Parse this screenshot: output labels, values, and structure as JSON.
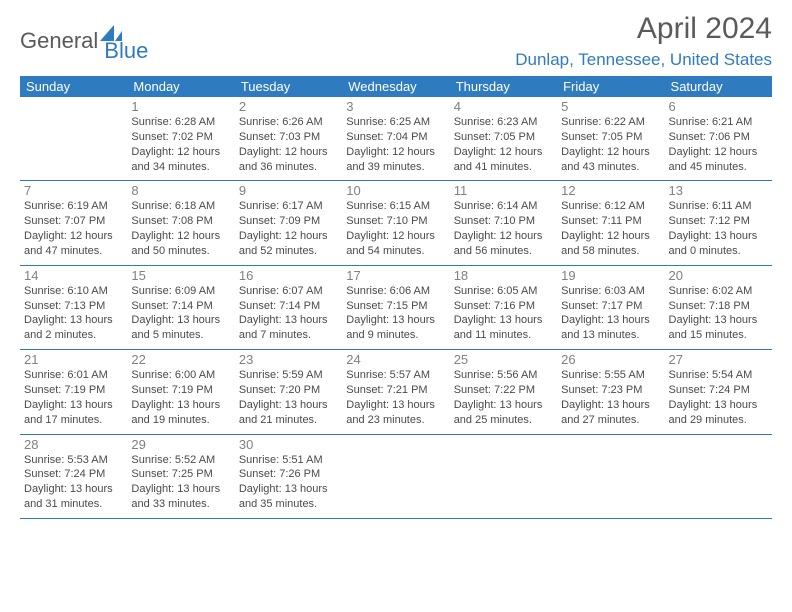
{
  "logo": {
    "part1": "General",
    "part2": "Blue"
  },
  "title": "April 2024",
  "location": "Dunlap, Tennessee, United States",
  "colors": {
    "accent": "#2f7bbf",
    "header_text": "#5a5a5a",
    "body_text": "#4a4a4a",
    "daynum_text": "#808080",
    "bg": "#ffffff"
  },
  "weekdays": [
    "Sunday",
    "Monday",
    "Tuesday",
    "Wednesday",
    "Thursday",
    "Friday",
    "Saturday"
  ],
  "weeks": [
    [
      null,
      {
        "n": "1",
        "sr": "6:28 AM",
        "ss": "7:02 PM",
        "d1": "12 hours",
        "d2": "and 34 minutes."
      },
      {
        "n": "2",
        "sr": "6:26 AM",
        "ss": "7:03 PM",
        "d1": "12 hours",
        "d2": "and 36 minutes."
      },
      {
        "n": "3",
        "sr": "6:25 AM",
        "ss": "7:04 PM",
        "d1": "12 hours",
        "d2": "and 39 minutes."
      },
      {
        "n": "4",
        "sr": "6:23 AM",
        "ss": "7:05 PM",
        "d1": "12 hours",
        "d2": "and 41 minutes."
      },
      {
        "n": "5",
        "sr": "6:22 AM",
        "ss": "7:05 PM",
        "d1": "12 hours",
        "d2": "and 43 minutes."
      },
      {
        "n": "6",
        "sr": "6:21 AM",
        "ss": "7:06 PM",
        "d1": "12 hours",
        "d2": "and 45 minutes."
      }
    ],
    [
      {
        "n": "7",
        "sr": "6:19 AM",
        "ss": "7:07 PM",
        "d1": "12 hours",
        "d2": "and 47 minutes."
      },
      {
        "n": "8",
        "sr": "6:18 AM",
        "ss": "7:08 PM",
        "d1": "12 hours",
        "d2": "and 50 minutes."
      },
      {
        "n": "9",
        "sr": "6:17 AM",
        "ss": "7:09 PM",
        "d1": "12 hours",
        "d2": "and 52 minutes."
      },
      {
        "n": "10",
        "sr": "6:15 AM",
        "ss": "7:10 PM",
        "d1": "12 hours",
        "d2": "and 54 minutes."
      },
      {
        "n": "11",
        "sr": "6:14 AM",
        "ss": "7:10 PM",
        "d1": "12 hours",
        "d2": "and 56 minutes."
      },
      {
        "n": "12",
        "sr": "6:12 AM",
        "ss": "7:11 PM",
        "d1": "12 hours",
        "d2": "and 58 minutes."
      },
      {
        "n": "13",
        "sr": "6:11 AM",
        "ss": "7:12 PM",
        "d1": "13 hours",
        "d2": "and 0 minutes."
      }
    ],
    [
      {
        "n": "14",
        "sr": "6:10 AM",
        "ss": "7:13 PM",
        "d1": "13 hours",
        "d2": "and 2 minutes."
      },
      {
        "n": "15",
        "sr": "6:09 AM",
        "ss": "7:14 PM",
        "d1": "13 hours",
        "d2": "and 5 minutes."
      },
      {
        "n": "16",
        "sr": "6:07 AM",
        "ss": "7:14 PM",
        "d1": "13 hours",
        "d2": "and 7 minutes."
      },
      {
        "n": "17",
        "sr": "6:06 AM",
        "ss": "7:15 PM",
        "d1": "13 hours",
        "d2": "and 9 minutes."
      },
      {
        "n": "18",
        "sr": "6:05 AM",
        "ss": "7:16 PM",
        "d1": "13 hours",
        "d2": "and 11 minutes."
      },
      {
        "n": "19",
        "sr": "6:03 AM",
        "ss": "7:17 PM",
        "d1": "13 hours",
        "d2": "and 13 minutes."
      },
      {
        "n": "20",
        "sr": "6:02 AM",
        "ss": "7:18 PM",
        "d1": "13 hours",
        "d2": "and 15 minutes."
      }
    ],
    [
      {
        "n": "21",
        "sr": "6:01 AM",
        "ss": "7:19 PM",
        "d1": "13 hours",
        "d2": "and 17 minutes."
      },
      {
        "n": "22",
        "sr": "6:00 AM",
        "ss": "7:19 PM",
        "d1": "13 hours",
        "d2": "and 19 minutes."
      },
      {
        "n": "23",
        "sr": "5:59 AM",
        "ss": "7:20 PM",
        "d1": "13 hours",
        "d2": "and 21 minutes."
      },
      {
        "n": "24",
        "sr": "5:57 AM",
        "ss": "7:21 PM",
        "d1": "13 hours",
        "d2": "and 23 minutes."
      },
      {
        "n": "25",
        "sr": "5:56 AM",
        "ss": "7:22 PM",
        "d1": "13 hours",
        "d2": "and 25 minutes."
      },
      {
        "n": "26",
        "sr": "5:55 AM",
        "ss": "7:23 PM",
        "d1": "13 hours",
        "d2": "and 27 minutes."
      },
      {
        "n": "27",
        "sr": "5:54 AM",
        "ss": "7:24 PM",
        "d1": "13 hours",
        "d2": "and 29 minutes."
      }
    ],
    [
      {
        "n": "28",
        "sr": "5:53 AM",
        "ss": "7:24 PM",
        "d1": "13 hours",
        "d2": "and 31 minutes."
      },
      {
        "n": "29",
        "sr": "5:52 AM",
        "ss": "7:25 PM",
        "d1": "13 hours",
        "d2": "and 33 minutes."
      },
      {
        "n": "30",
        "sr": "5:51 AM",
        "ss": "7:26 PM",
        "d1": "13 hours",
        "d2": "and 35 minutes."
      },
      null,
      null,
      null,
      null
    ]
  ],
  "labels": {
    "sunrise": "Sunrise:",
    "sunset": "Sunset:",
    "daylight": "Daylight:"
  }
}
